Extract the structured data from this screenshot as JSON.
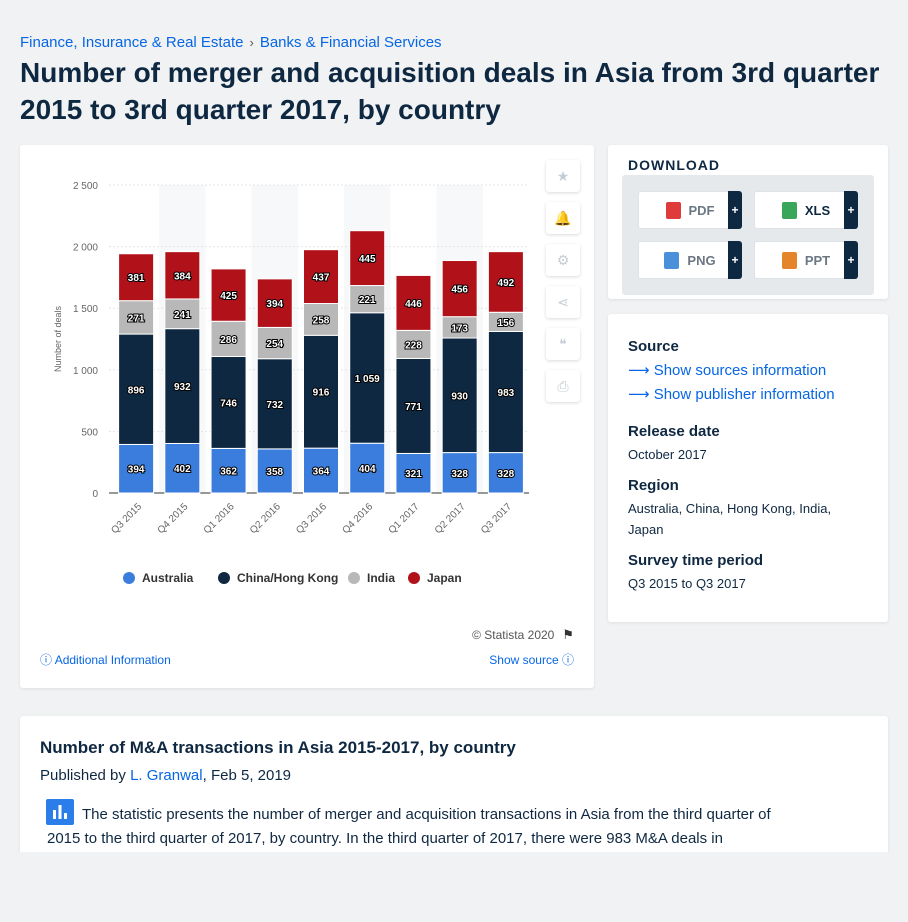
{
  "breadcrumb": [
    "Finance, Insurance & Real Estate",
    "Banks & Financial Services"
  ],
  "breadcrumb_sep": "›",
  "title": "Number of merger and acquisition deals in Asia from 3rd quarter 2015 to 3rd quarter 2017, by country",
  "chart_data": {
    "type": "bar",
    "stacked": true,
    "categories": [
      "Q3 2015",
      "Q4 2015",
      "Q1 2016",
      "Q2 2016",
      "Q3 2016",
      "Q4 2016",
      "Q1 2017",
      "Q2 2017",
      "Q3 2017"
    ],
    "series": [
      {
        "name": "Australia",
        "color": "#3b7ddd",
        "values": [
          394,
          402,
          362,
          358,
          364,
          404,
          321,
          328,
          328
        ]
      },
      {
        "name": "China/Hong Kong",
        "color": "#0f2841",
        "values": [
          896,
          932,
          746,
          732,
          916,
          1059,
          771,
          930,
          983
        ]
      },
      {
        "name": "India",
        "color": "#b8b8b8",
        "values": [
          271,
          241,
          286,
          254,
          258,
          221,
          228,
          173,
          156
        ]
      },
      {
        "name": "Japan",
        "color": "#b1121a",
        "values": [
          381,
          384,
          425,
          394,
          437,
          445,
          446,
          456,
          492
        ]
      }
    ],
    "value_labels": {
      "Australia": [
        "394",
        "402",
        "362",
        "358",
        "364",
        "404",
        "321",
        "328",
        "328"
      ],
      "China/Hong Kong": [
        "896",
        "932",
        "746",
        "732",
        "916",
        "1 059",
        "771",
        "930",
        "983"
      ],
      "India": [
        "271",
        "241",
        "286",
        "254",
        "258",
        "221",
        "228",
        "173",
        "156"
      ],
      "Japan": [
        "381",
        "384",
        "425",
        "394",
        "437",
        "445",
        "446",
        "456",
        "492"
      ]
    },
    "ylabel": "Number of deals",
    "ylim": [
      0,
      2500
    ],
    "yticks": [
      0,
      500,
      1000,
      1500,
      2000,
      2500
    ],
    "ytick_labels": [
      "0",
      "500",
      "1 000",
      "1 500",
      "2 000",
      "2 500"
    ],
    "grid": true,
    "legend": "bottom"
  },
  "tools": [
    "star-icon",
    "bell-icon",
    "gear-icon",
    "share-icon",
    "quote-icon",
    "print-icon"
  ],
  "copyright": "© Statista 2020",
  "additional_info": "Additional Information",
  "show_source": "Show source",
  "download": {
    "title": "DOWNLOAD",
    "buttons": [
      {
        "label": "PDF",
        "color": "#e03b3b"
      },
      {
        "label": "XLS",
        "color": "#3aa65a"
      },
      {
        "label": "PNG",
        "color": "#4a8fd9"
      },
      {
        "label": "PPT",
        "color": "#e5852b"
      }
    ],
    "plus": "+"
  },
  "info": {
    "source_h": "Source",
    "show_sources": "Show sources information",
    "show_publisher": "Show publisher information",
    "release_h": "Release date",
    "release_v": "October 2017",
    "region_h": "Region",
    "region_v": "Australia, China, Hong Kong, India, Japan",
    "period_h": "Survey time period",
    "period_v": "Q3 2015 to Q3 2017"
  },
  "desc": {
    "title": "Number of M&A transactions in Asia 2015-2017, by country",
    "published_prefix": "Published by",
    "author": "L. Granwal",
    "date": ", Feb 5, 2019",
    "text": "The statistic presents the number of merger and acquisition transactions in Asia from the third quarter of 2015 to the third quarter of 2017, by country. In the third quarter of 2017, there were 983 M&A deals in"
  }
}
